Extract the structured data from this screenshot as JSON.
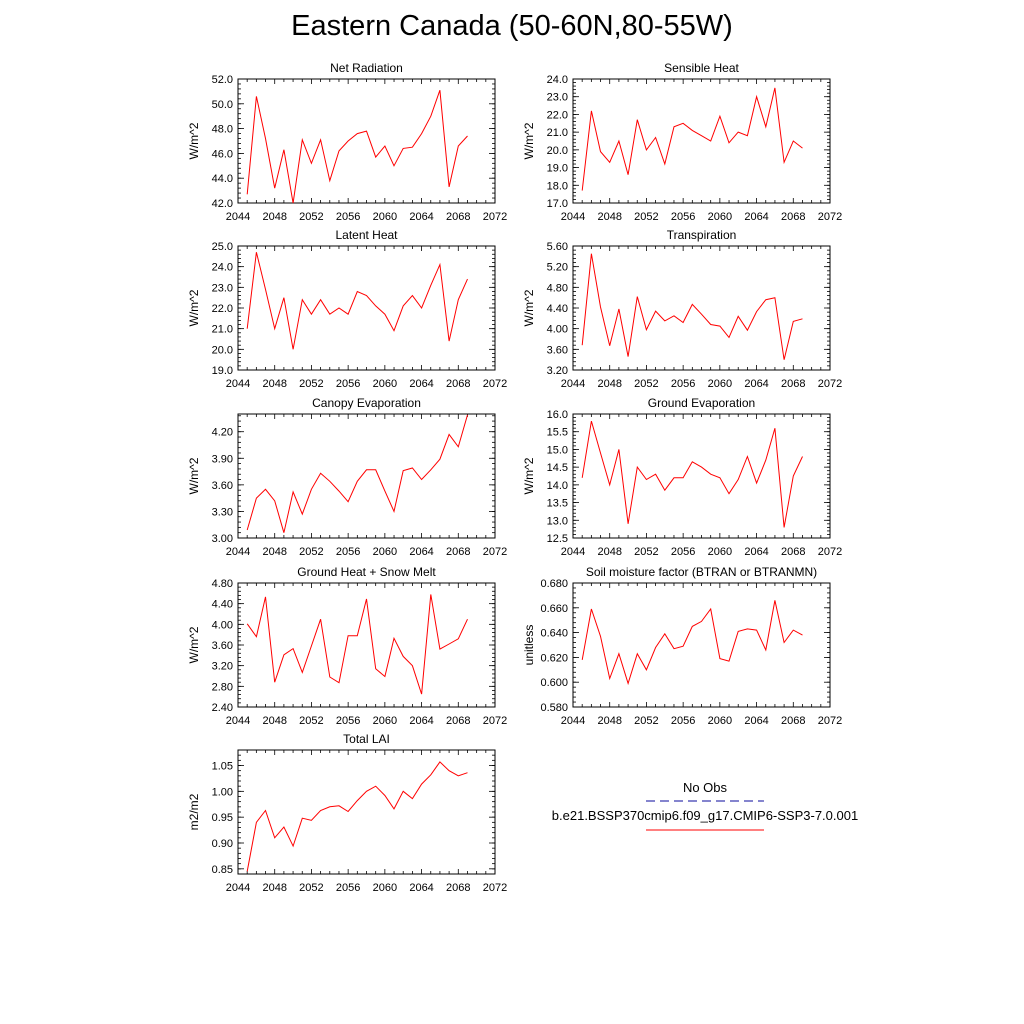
{
  "page": {
    "title": "Eastern Canada (50-60N,80-55W)"
  },
  "legend": {
    "obs_label": "No Obs",
    "obs_color": "#3b3bb0",
    "case_label": "b.e21.BSSP370cmip6.f09_g17.CMIP6-SSP3-7.0.001",
    "case_color": "#ff0000"
  },
  "chart_data": [
    {
      "type": "line",
      "title": "Net Radiation",
      "ylabel": "W/m^2",
      "xlim": [
        2044,
        2072
      ],
      "ylim": [
        42.0,
        52.0
      ],
      "xticks": [
        "2044",
        "2048",
        "2052",
        "2056",
        "2060",
        "2064",
        "2068",
        "2072"
      ],
      "yticks": [
        "42.0",
        "44.0",
        "46.0",
        "48.0",
        "50.0",
        "52.0"
      ],
      "x": [
        2045,
        2046,
        2047,
        2048,
        2049,
        2050,
        2051,
        2052,
        2053,
        2054,
        2055,
        2056,
        2057,
        2058,
        2059,
        2060,
        2061,
        2062,
        2063,
        2064,
        2065,
        2066,
        2067,
        2068,
        2069
      ],
      "values": [
        42.7,
        50.6,
        47.2,
        43.2,
        46.3,
        42.0,
        47.1,
        45.2,
        47.1,
        43.8,
        46.2,
        47.0,
        47.6,
        47.8,
        45.7,
        46.6,
        45.0,
        46.4,
        46.5,
        47.6,
        49.0,
        51.1,
        43.3,
        46.6,
        47.4
      ],
      "color": "#ff0000"
    },
    {
      "type": "line",
      "title": "Sensible Heat",
      "ylabel": "W/m^2",
      "xlim": [
        2044,
        2072
      ],
      "ylim": [
        17.0,
        24.0
      ],
      "xticks": [
        "2044",
        "2048",
        "2052",
        "2056",
        "2060",
        "2064",
        "2068",
        "2072"
      ],
      "yticks": [
        "17.0",
        "18.0",
        "19.0",
        "20.0",
        "21.0",
        "22.0",
        "23.0",
        "24.0"
      ],
      "x": [
        2045,
        2046,
        2047,
        2048,
        2049,
        2050,
        2051,
        2052,
        2053,
        2054,
        2055,
        2056,
        2057,
        2058,
        2059,
        2060,
        2061,
        2062,
        2063,
        2064,
        2065,
        2066,
        2067,
        2068,
        2069
      ],
      "values": [
        17.7,
        22.2,
        19.9,
        19.3,
        20.5,
        18.6,
        21.7,
        20.0,
        20.7,
        19.2,
        21.3,
        21.5,
        21.1,
        20.8,
        20.5,
        21.9,
        20.4,
        21.0,
        20.8,
        23.0,
        21.3,
        23.5,
        19.3,
        20.5,
        20.1
      ],
      "color": "#ff0000"
    },
    {
      "type": "line",
      "title": "Latent Heat",
      "ylabel": "W/m^2",
      "xlim": [
        2044,
        2072
      ],
      "ylim": [
        19.0,
        25.0
      ],
      "xticks": [
        "2044",
        "2048",
        "2052",
        "2056",
        "2060",
        "2064",
        "2068",
        "2072"
      ],
      "yticks": [
        "19.0",
        "20.0",
        "21.0",
        "22.0",
        "23.0",
        "24.0",
        "25.0"
      ],
      "x": [
        2045,
        2046,
        2047,
        2048,
        2049,
        2050,
        2051,
        2052,
        2053,
        2054,
        2055,
        2056,
        2057,
        2058,
        2059,
        2060,
        2061,
        2062,
        2063,
        2064,
        2065,
        2066,
        2067,
        2068,
        2069
      ],
      "values": [
        21.0,
        24.7,
        22.9,
        21.0,
        22.5,
        20.0,
        22.4,
        21.7,
        22.4,
        21.7,
        22.0,
        21.7,
        22.8,
        22.6,
        22.1,
        21.7,
        20.9,
        22.1,
        22.6,
        22.0,
        23.1,
        24.1,
        20.4,
        22.4,
        23.4
      ],
      "color": "#ff0000"
    },
    {
      "type": "line",
      "title": "Transpiration",
      "ylabel": "W/m^2",
      "xlim": [
        2044,
        2072
      ],
      "ylim": [
        3.2,
        5.6
      ],
      "xticks": [
        "2044",
        "2048",
        "2052",
        "2056",
        "2060",
        "2064",
        "2068",
        "2072"
      ],
      "yticks": [
        "3.20",
        "3.60",
        "4.00",
        "4.40",
        "4.80",
        "5.20",
        "5.60"
      ],
      "x": [
        2045,
        2046,
        2047,
        2048,
        2049,
        2050,
        2051,
        2052,
        2053,
        2054,
        2055,
        2056,
        2057,
        2058,
        2059,
        2060,
        2061,
        2062,
        2063,
        2064,
        2065,
        2066,
        2067,
        2068,
        2069
      ],
      "values": [
        3.68,
        5.45,
        4.42,
        3.67,
        4.38,
        3.46,
        4.62,
        3.98,
        4.34,
        4.15,
        4.25,
        4.12,
        4.47,
        4.28,
        4.08,
        4.05,
        3.83,
        4.24,
        3.97,
        4.33,
        4.56,
        4.6,
        3.4,
        4.14,
        4.19
      ],
      "color": "#ff0000"
    },
    {
      "type": "line",
      "title": "Canopy Evaporation",
      "ylabel": "W/m^2",
      "xlim": [
        2044,
        2072
      ],
      "ylim": [
        3.0,
        4.4
      ],
      "xticks": [
        "2044",
        "2048",
        "2052",
        "2056",
        "2060",
        "2064",
        "2068",
        "2072"
      ],
      "yticks": [
        "3.00",
        "3.30",
        "3.60",
        "3.90",
        "4.20"
      ],
      "x": [
        2045,
        2046,
        2047,
        2048,
        2049,
        2050,
        2051,
        2052,
        2053,
        2054,
        2055,
        2056,
        2057,
        2058,
        2059,
        2060,
        2061,
        2062,
        2063,
        2064,
        2065,
        2066,
        2067,
        2068,
        2069
      ],
      "values": [
        3.09,
        3.45,
        3.55,
        3.42,
        3.06,
        3.52,
        3.27,
        3.55,
        3.73,
        3.64,
        3.53,
        3.41,
        3.64,
        3.77,
        3.77,
        3.53,
        3.3,
        3.76,
        3.79,
        3.66,
        3.77,
        3.89,
        4.17,
        4.03,
        4.39
      ],
      "color": "#ff0000"
    },
    {
      "type": "line",
      "title": "Ground Evaporation",
      "ylabel": "W/m^2",
      "xlim": [
        2044,
        2072
      ],
      "ylim": [
        12.5,
        16.0
      ],
      "xticks": [
        "2044",
        "2048",
        "2052",
        "2056",
        "2060",
        "2064",
        "2068",
        "2072"
      ],
      "yticks": [
        "12.5",
        "13.0",
        "13.5",
        "14.0",
        "14.5",
        "15.0",
        "15.5",
        "16.0"
      ],
      "x": [
        2045,
        2046,
        2047,
        2048,
        2049,
        2050,
        2051,
        2052,
        2053,
        2054,
        2055,
        2056,
        2057,
        2058,
        2059,
        2060,
        2061,
        2062,
        2063,
        2064,
        2065,
        2066,
        2067,
        2068,
        2069
      ],
      "values": [
        14.2,
        15.8,
        14.9,
        14.0,
        15.0,
        12.9,
        14.5,
        14.15,
        14.3,
        13.85,
        14.2,
        14.2,
        14.65,
        14.5,
        14.3,
        14.2,
        13.75,
        14.15,
        14.8,
        14.05,
        14.7,
        15.6,
        12.8,
        14.25,
        14.8
      ],
      "color": "#ff0000"
    },
    {
      "type": "line",
      "title": "Ground Heat + Snow Melt",
      "ylabel": "W/m^2",
      "xlim": [
        2044,
        2072
      ],
      "ylim": [
        2.4,
        4.8
      ],
      "xticks": [
        "2044",
        "2048",
        "2052",
        "2056",
        "2060",
        "2064",
        "2068",
        "2072"
      ],
      "yticks": [
        "2.40",
        "2.80",
        "3.20",
        "3.60",
        "4.00",
        "4.40",
        "4.80"
      ],
      "x": [
        2045,
        2046,
        2047,
        2048,
        2049,
        2050,
        2051,
        2052,
        2053,
        2054,
        2055,
        2056,
        2057,
        2058,
        2059,
        2060,
        2061,
        2062,
        2063,
        2064,
        2065,
        2066,
        2067,
        2068,
        2069
      ],
      "values": [
        4.01,
        3.76,
        4.53,
        2.88,
        3.41,
        3.53,
        3.07,
        3.58,
        4.1,
        2.98,
        2.87,
        3.78,
        3.78,
        4.49,
        3.14,
        2.99,
        3.73,
        3.38,
        3.2,
        2.65,
        4.58,
        3.52,
        3.62,
        3.72,
        4.1
      ],
      "color": "#ff0000"
    },
    {
      "type": "line",
      "title": "Soil moisture factor (BTRAN or BTRANMN)",
      "ylabel": "unitless",
      "xlim": [
        2044,
        2072
      ],
      "ylim": [
        0.58,
        0.68
      ],
      "xticks": [
        "2044",
        "2048",
        "2052",
        "2056",
        "2060",
        "2064",
        "2068",
        "2072"
      ],
      "yticks": [
        "0.580",
        "0.600",
        "0.620",
        "0.640",
        "0.660",
        "0.680"
      ],
      "x": [
        2045,
        2046,
        2047,
        2048,
        2049,
        2050,
        2051,
        2052,
        2053,
        2054,
        2055,
        2056,
        2057,
        2058,
        2059,
        2060,
        2061,
        2062,
        2063,
        2064,
        2065,
        2066,
        2067,
        2068,
        2069
      ],
      "values": [
        0.618,
        0.659,
        0.637,
        0.603,
        0.623,
        0.599,
        0.623,
        0.61,
        0.628,
        0.639,
        0.627,
        0.629,
        0.645,
        0.649,
        0.659,
        0.619,
        0.617,
        0.641,
        0.643,
        0.642,
        0.626,
        0.666,
        0.632,
        0.642,
        0.638
      ],
      "color": "#ff0000"
    },
    {
      "type": "line",
      "title": "Total LAI",
      "ylabel": "m2/m2",
      "xlim": [
        2044,
        2072
      ],
      "ylim": [
        0.84,
        1.08
      ],
      "xticks": [
        "2044",
        "2048",
        "2052",
        "2056",
        "2060",
        "2064",
        "2068",
        "2072"
      ],
      "yticks": [
        "0.85",
        "0.90",
        "0.95",
        "1.00",
        "1.05"
      ],
      "x": [
        2045,
        2046,
        2047,
        2048,
        2049,
        2050,
        2051,
        2052,
        2053,
        2054,
        2055,
        2056,
        2057,
        2058,
        2059,
        2060,
        2061,
        2062,
        2063,
        2064,
        2065,
        2066,
        2067,
        2068,
        2069
      ],
      "values": [
        0.845,
        0.94,
        0.963,
        0.91,
        0.931,
        0.894,
        0.948,
        0.944,
        0.963,
        0.97,
        0.972,
        0.961,
        0.982,
        1.0,
        1.01,
        0.992,
        0.966,
        1.0,
        0.986,
        1.014,
        1.032,
        1.057,
        1.04,
        1.03,
        1.036
      ],
      "color": "#ff0000"
    }
  ]
}
